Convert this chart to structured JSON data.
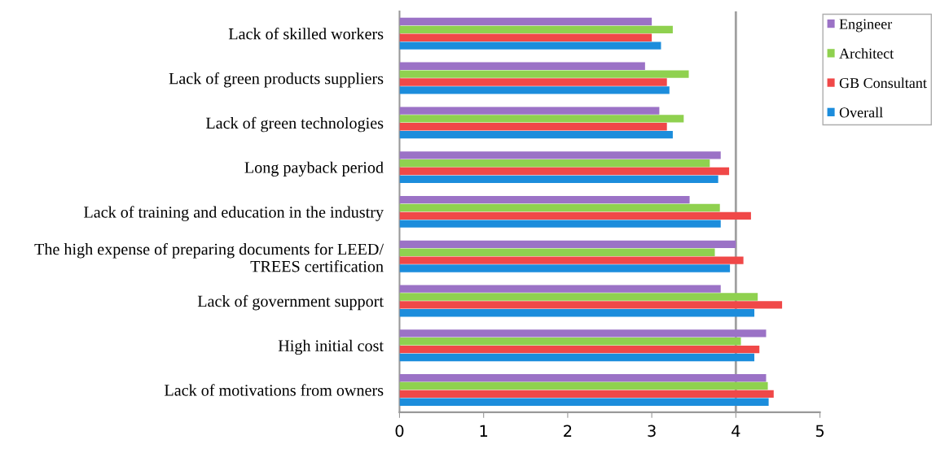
{
  "chart_data": {
    "type": "bar",
    "orientation": "horizontal",
    "categories": [
      "Lack of skilled workers",
      "Lack of green products suppliers",
      "Lack of green technologies",
      "Long payback period",
      "Lack of training and education in the industry",
      "The high expense of preparing documents for LEED/\nTREES certification",
      "Lack of government support",
      "High initial cost",
      "Lack of motivations from owners"
    ],
    "series": [
      {
        "name": "Engineer",
        "color": "#9b72c6",
        "values": [
          3.0,
          2.92,
          3.09,
          3.82,
          3.45,
          4.0,
          3.82,
          4.36,
          4.36
        ]
      },
      {
        "name": "Architect",
        "color": "#8fd14f",
        "values": [
          3.25,
          3.44,
          3.38,
          3.69,
          3.81,
          3.75,
          4.26,
          4.06,
          4.38
        ]
      },
      {
        "name": "GB Consultant",
        "color": "#f04848",
        "values": [
          3.0,
          3.18,
          3.18,
          3.92,
          4.18,
          4.09,
          4.55,
          4.28,
          4.45
        ]
      },
      {
        "name": "Overall",
        "color": "#1c8ddc",
        "values": [
          3.11,
          3.21,
          3.25,
          3.79,
          3.82,
          3.93,
          4.22,
          4.22,
          4.39
        ]
      }
    ],
    "xlim": [
      0,
      5
    ],
    "xticks": [
      0,
      1,
      2,
      3,
      4,
      5
    ],
    "ref_lines": [
      {
        "axis": "x",
        "value": 4,
        "color": "#a0a0a0"
      }
    ],
    "grid": false,
    "legend": "right"
  }
}
